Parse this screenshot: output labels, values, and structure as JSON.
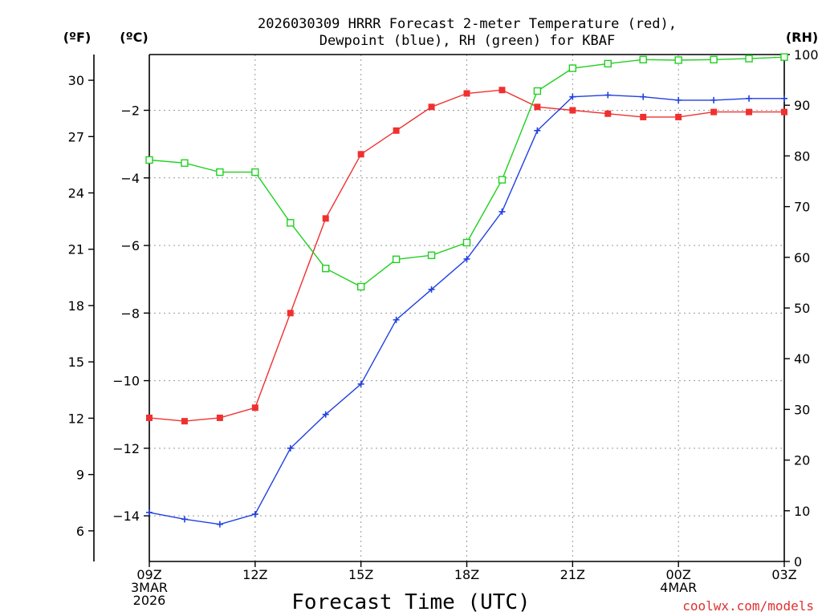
{
  "chart_data": {
    "type": "line",
    "title": [
      "2026030309 HRRR Forecast 2-meter Temperature (red),",
      "Dewpoint (blue), RH (green) for KBAF"
    ],
    "xlabel": "Forecast Time (UTC)",
    "credit": "coolwx.com/models",
    "unit_labels": {
      "fahrenheit": "(ºF)",
      "celsius": "(ºC)",
      "rh": "(RH)"
    },
    "x_hours": [
      0,
      1,
      2,
      3,
      4,
      5,
      6,
      7,
      8,
      9,
      10,
      11,
      12,
      13,
      14,
      15,
      16,
      17,
      18
    ],
    "x_range": [
      0,
      18
    ],
    "x_ticks": [
      {
        "hour": 0,
        "lines": [
          "09Z",
          "3MAR",
          "2026"
        ]
      },
      {
        "hour": 3,
        "lines": [
          "12Z"
        ]
      },
      {
        "hour": 6,
        "lines": [
          "15Z"
        ]
      },
      {
        "hour": 9,
        "lines": [
          "18Z"
        ]
      },
      {
        "hour": 12,
        "lines": [
          "21Z"
        ]
      },
      {
        "hour": 15,
        "lines": [
          "00Z",
          "4MAR"
        ]
      },
      {
        "hour": 18,
        "lines": [
          "03Z"
        ]
      }
    ],
    "y_celsius": {
      "range": [
        -15.35,
        -0.35
      ],
      "ticks": [
        -14,
        -12,
        -10,
        -8,
        -6,
        -4,
        -2
      ],
      "tick_labels": [
        "−14",
        "−12",
        "−10",
        "−8",
        "−6",
        "−4",
        "−2"
      ]
    },
    "y_fahrenheit": {
      "ticks": [
        6,
        9,
        12,
        15,
        18,
        21,
        24,
        27,
        30
      ],
      "tick_labels": [
        "6",
        "9",
        "12",
        "15",
        "18",
        "21",
        "24",
        "27",
        "30"
      ]
    },
    "y_rh": {
      "range": [
        0,
        100
      ],
      "ticks": [
        0,
        10,
        20,
        30,
        40,
        50,
        60,
        70,
        80,
        90,
        100
      ],
      "tick_labels": [
        "0",
        "10",
        "20",
        "30",
        "40",
        "50",
        "60",
        "70",
        "80",
        "90",
        "100"
      ]
    },
    "series": [
      {
        "name": "Temperature",
        "axis": "celsius",
        "color": "#f03030",
        "marker": "filled-square",
        "values": [
          -11.1,
          -11.2,
          -11.1,
          -10.8,
          -8.0,
          -5.2,
          -3.3,
          -2.6,
          -1.9,
          -1.5,
          -1.4,
          -1.9,
          -2.0,
          -2.1,
          -2.2,
          -2.2,
          -2.05,
          -2.05,
          -2.05
        ]
      },
      {
        "name": "Dewpoint",
        "axis": "celsius",
        "color": "#2040e0",
        "marker": "plus",
        "values": [
          -13.9,
          -14.1,
          -14.25,
          -13.95,
          -12.0,
          -11.0,
          -10.1,
          -8.2,
          -7.3,
          -6.4,
          -5.0,
          -2.6,
          -1.6,
          -1.55,
          -1.6,
          -1.7,
          -1.7,
          -1.65,
          -1.65
        ]
      },
      {
        "name": "RH",
        "axis": "rh",
        "color": "#20d020",
        "marker": "open-square",
        "values": [
          79.2,
          78.6,
          76.8,
          76.8,
          66.8,
          57.8,
          54.2,
          59.6,
          60.4,
          62.9,
          75.3,
          92.8,
          97.3,
          98.2,
          99.0,
          98.9,
          99.0,
          99.2,
          99.5
        ]
      }
    ]
  }
}
